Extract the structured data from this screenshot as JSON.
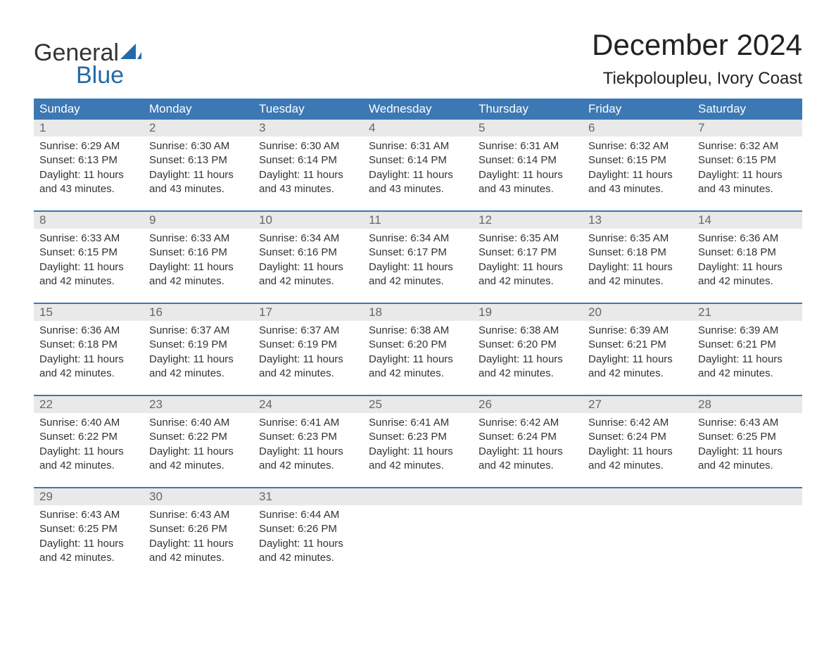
{
  "colors": {
    "header_bg": "#3c78b4",
    "header_text": "#ffffff",
    "daynum_bg": "#e9e9e9",
    "daynum_text": "#666666",
    "body_text": "#333333",
    "page_bg": "#ffffff",
    "logo_blue": "#256aa8",
    "week_border": "#3c78b4"
  },
  "logo": {
    "word1": "General",
    "word2": "Blue"
  },
  "title": "December 2024",
  "location": "Tiekpoloupleu, Ivory Coast",
  "day_names": [
    "Sunday",
    "Monday",
    "Tuesday",
    "Wednesday",
    "Thursday",
    "Friday",
    "Saturday"
  ],
  "labels": {
    "sunrise": "Sunrise:",
    "sunset": "Sunset:",
    "daylight": "Daylight:"
  },
  "weeks": [
    [
      {
        "n": "1",
        "sunrise": "6:29 AM",
        "sunset": "6:13 PM",
        "dl1": "11 hours",
        "dl2": "and 43 minutes."
      },
      {
        "n": "2",
        "sunrise": "6:30 AM",
        "sunset": "6:13 PM",
        "dl1": "11 hours",
        "dl2": "and 43 minutes."
      },
      {
        "n": "3",
        "sunrise": "6:30 AM",
        "sunset": "6:14 PM",
        "dl1": "11 hours",
        "dl2": "and 43 minutes."
      },
      {
        "n": "4",
        "sunrise": "6:31 AM",
        "sunset": "6:14 PM",
        "dl1": "11 hours",
        "dl2": "and 43 minutes."
      },
      {
        "n": "5",
        "sunrise": "6:31 AM",
        "sunset": "6:14 PM",
        "dl1": "11 hours",
        "dl2": "and 43 minutes."
      },
      {
        "n": "6",
        "sunrise": "6:32 AM",
        "sunset": "6:15 PM",
        "dl1": "11 hours",
        "dl2": "and 43 minutes."
      },
      {
        "n": "7",
        "sunrise": "6:32 AM",
        "sunset": "6:15 PM",
        "dl1": "11 hours",
        "dl2": "and 43 minutes."
      }
    ],
    [
      {
        "n": "8",
        "sunrise": "6:33 AM",
        "sunset": "6:15 PM",
        "dl1": "11 hours",
        "dl2": "and 42 minutes."
      },
      {
        "n": "9",
        "sunrise": "6:33 AM",
        "sunset": "6:16 PM",
        "dl1": "11 hours",
        "dl2": "and 42 minutes."
      },
      {
        "n": "10",
        "sunrise": "6:34 AM",
        "sunset": "6:16 PM",
        "dl1": "11 hours",
        "dl2": "and 42 minutes."
      },
      {
        "n": "11",
        "sunrise": "6:34 AM",
        "sunset": "6:17 PM",
        "dl1": "11 hours",
        "dl2": "and 42 minutes."
      },
      {
        "n": "12",
        "sunrise": "6:35 AM",
        "sunset": "6:17 PM",
        "dl1": "11 hours",
        "dl2": "and 42 minutes."
      },
      {
        "n": "13",
        "sunrise": "6:35 AM",
        "sunset": "6:18 PM",
        "dl1": "11 hours",
        "dl2": "and 42 minutes."
      },
      {
        "n": "14",
        "sunrise": "6:36 AM",
        "sunset": "6:18 PM",
        "dl1": "11 hours",
        "dl2": "and 42 minutes."
      }
    ],
    [
      {
        "n": "15",
        "sunrise": "6:36 AM",
        "sunset": "6:18 PM",
        "dl1": "11 hours",
        "dl2": "and 42 minutes."
      },
      {
        "n": "16",
        "sunrise": "6:37 AM",
        "sunset": "6:19 PM",
        "dl1": "11 hours",
        "dl2": "and 42 minutes."
      },
      {
        "n": "17",
        "sunrise": "6:37 AM",
        "sunset": "6:19 PM",
        "dl1": "11 hours",
        "dl2": "and 42 minutes."
      },
      {
        "n": "18",
        "sunrise": "6:38 AM",
        "sunset": "6:20 PM",
        "dl1": "11 hours",
        "dl2": "and 42 minutes."
      },
      {
        "n": "19",
        "sunrise": "6:38 AM",
        "sunset": "6:20 PM",
        "dl1": "11 hours",
        "dl2": "and 42 minutes."
      },
      {
        "n": "20",
        "sunrise": "6:39 AM",
        "sunset": "6:21 PM",
        "dl1": "11 hours",
        "dl2": "and 42 minutes."
      },
      {
        "n": "21",
        "sunrise": "6:39 AM",
        "sunset": "6:21 PM",
        "dl1": "11 hours",
        "dl2": "and 42 minutes."
      }
    ],
    [
      {
        "n": "22",
        "sunrise": "6:40 AM",
        "sunset": "6:22 PM",
        "dl1": "11 hours",
        "dl2": "and 42 minutes."
      },
      {
        "n": "23",
        "sunrise": "6:40 AM",
        "sunset": "6:22 PM",
        "dl1": "11 hours",
        "dl2": "and 42 minutes."
      },
      {
        "n": "24",
        "sunrise": "6:41 AM",
        "sunset": "6:23 PM",
        "dl1": "11 hours",
        "dl2": "and 42 minutes."
      },
      {
        "n": "25",
        "sunrise": "6:41 AM",
        "sunset": "6:23 PM",
        "dl1": "11 hours",
        "dl2": "and 42 minutes."
      },
      {
        "n": "26",
        "sunrise": "6:42 AM",
        "sunset": "6:24 PM",
        "dl1": "11 hours",
        "dl2": "and 42 minutes."
      },
      {
        "n": "27",
        "sunrise": "6:42 AM",
        "sunset": "6:24 PM",
        "dl1": "11 hours",
        "dl2": "and 42 minutes."
      },
      {
        "n": "28",
        "sunrise": "6:43 AM",
        "sunset": "6:25 PM",
        "dl1": "11 hours",
        "dl2": "and 42 minutes."
      }
    ],
    [
      {
        "n": "29",
        "sunrise": "6:43 AM",
        "sunset": "6:25 PM",
        "dl1": "11 hours",
        "dl2": "and 42 minutes."
      },
      {
        "n": "30",
        "sunrise": "6:43 AM",
        "sunset": "6:26 PM",
        "dl1": "11 hours",
        "dl2": "and 42 minutes."
      },
      {
        "n": "31",
        "sunrise": "6:44 AM",
        "sunset": "6:26 PM",
        "dl1": "11 hours",
        "dl2": "and 42 minutes."
      },
      null,
      null,
      null,
      null
    ]
  ]
}
